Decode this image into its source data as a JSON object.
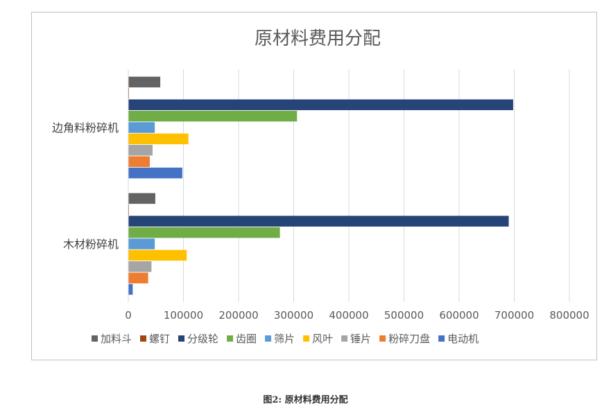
{
  "chart_data": {
    "type": "bar",
    "orientation": "horizontal",
    "title": "原材料费用分配",
    "categories": [
      "木材粉碎机",
      "边角料粉碎机"
    ],
    "series": [
      {
        "name": "加料斗",
        "color": "#636363",
        "values": [
          49000,
          58000
        ]
      },
      {
        "name": "螺钉",
        "color": "#9e480e",
        "values": [
          1000,
          1000
        ]
      },
      {
        "name": "分级轮",
        "color": "#264478",
        "values": [
          690000,
          698000
        ]
      },
      {
        "name": "齿圈",
        "color": "#70ad47",
        "values": [
          275000,
          306000
        ]
      },
      {
        "name": "筛片",
        "color": "#5b9bd5",
        "values": [
          48000,
          48000
        ]
      },
      {
        "name": "风叶",
        "color": "#ffc000",
        "values": [
          106000,
          109000
        ]
      },
      {
        "name": "锤片",
        "color": "#a5a5a5",
        "values": [
          42000,
          44000
        ]
      },
      {
        "name": "粉碎刀盘",
        "color": "#ed7d31",
        "values": [
          36000,
          39000
        ]
      },
      {
        "name": "电动机",
        "color": "#4472c4",
        "values": [
          8000,
          98000
        ]
      }
    ],
    "xlim": [
      0,
      800000
    ],
    "xticks": [
      "0",
      "100000",
      "200000",
      "300000",
      "400000",
      "500000",
      "600000",
      "700000",
      "800000"
    ],
    "grid": true,
    "legend": "bottom"
  },
  "caption": "图2: 原材料费用分配"
}
